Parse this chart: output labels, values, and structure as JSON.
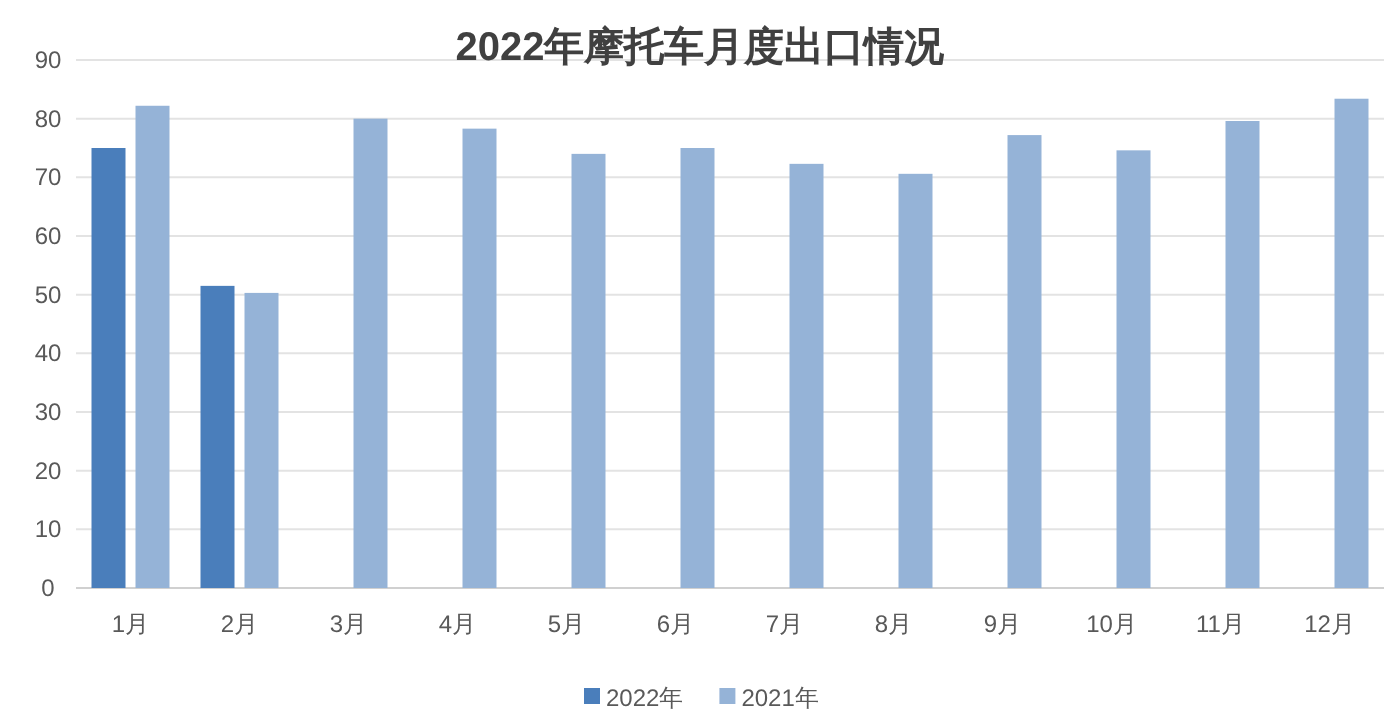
{
  "chart_data": {
    "type": "bar",
    "title": "2022年摩托车月度出口情况",
    "categories": [
      "1月",
      "2月",
      "3月",
      "4月",
      "5月",
      "6月",
      "7月",
      "8月",
      "9月",
      "10月",
      "11月",
      "12月"
    ],
    "series": [
      {
        "name": "2022年",
        "color": "#4a7ebb",
        "values": [
          75,
          51.5,
          null,
          null,
          null,
          null,
          null,
          null,
          null,
          null,
          null,
          null
        ]
      },
      {
        "name": "2021年",
        "color": "#95b3d7",
        "values": [
          82.2,
          50.3,
          80,
          78.3,
          74,
          75,
          72.3,
          70.6,
          77.2,
          74.6,
          79.6,
          83.4
        ]
      }
    ],
    "ylim": [
      0,
      90
    ],
    "yticks": [
      0,
      10,
      20,
      30,
      40,
      50,
      60,
      70,
      80,
      90
    ],
    "grid": "y",
    "legend": "bottom"
  }
}
